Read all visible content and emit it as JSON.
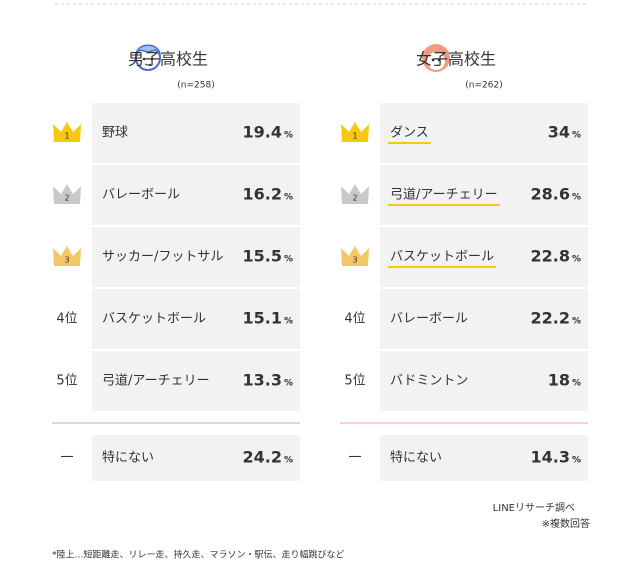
{
  "columns": [
    {
      "title": "男子高校生",
      "sample": "(n=258)",
      "color": "#4a6fc9",
      "line_color": "#b9d3ee",
      "rows": [
        {
          "rank": "1",
          "item": "野球",
          "value": 19.4
        },
        {
          "rank": "2",
          "item": "バレーボール",
          "value": 16.2
        },
        {
          "rank": "3",
          "item": "サッカー/フットサル",
          "value": 15.5
        },
        {
          "rank": "4位",
          "item": "バスケットボール",
          "value": 15.1
        },
        {
          "rank": "5位",
          "item": "弓道/アーチェリー",
          "value": 13.3
        }
      ],
      "none": {
        "rank": "一",
        "item": "特にない",
        "value": 24.2
      }
    },
    {
      "title": "女子高校生",
      "sample": "(n=262)",
      "color": "#f07a55",
      "line_color": "#f7c7b3",
      "rows": [
        {
          "rank": "1",
          "item": "ダンス",
          "value": 34.0,
          "highlight": true
        },
        {
          "rank": "2",
          "item": "弓道/アーチェリー",
          "value": 28.6,
          "highlight": true
        },
        {
          "rank": "3",
          "item": "バスケットボール",
          "value": 22.8,
          "highlight": true
        },
        {
          "rank": "4位",
          "item": "バレーボール",
          "value": 22.2
        },
        {
          "rank": "5位",
          "item": "バドミントン",
          "value": 18.0
        }
      ],
      "none": {
        "rank": "一",
        "item": "特にない",
        "value": 14.3
      }
    }
  ],
  "unit": "%",
  "source": "LINEリサーチ調べ",
  "note": "※複数回答",
  "footnote": "*陸上…短距離走、リレー走、持久走、マラソン・駅伝、走り幅跳びなど"
}
